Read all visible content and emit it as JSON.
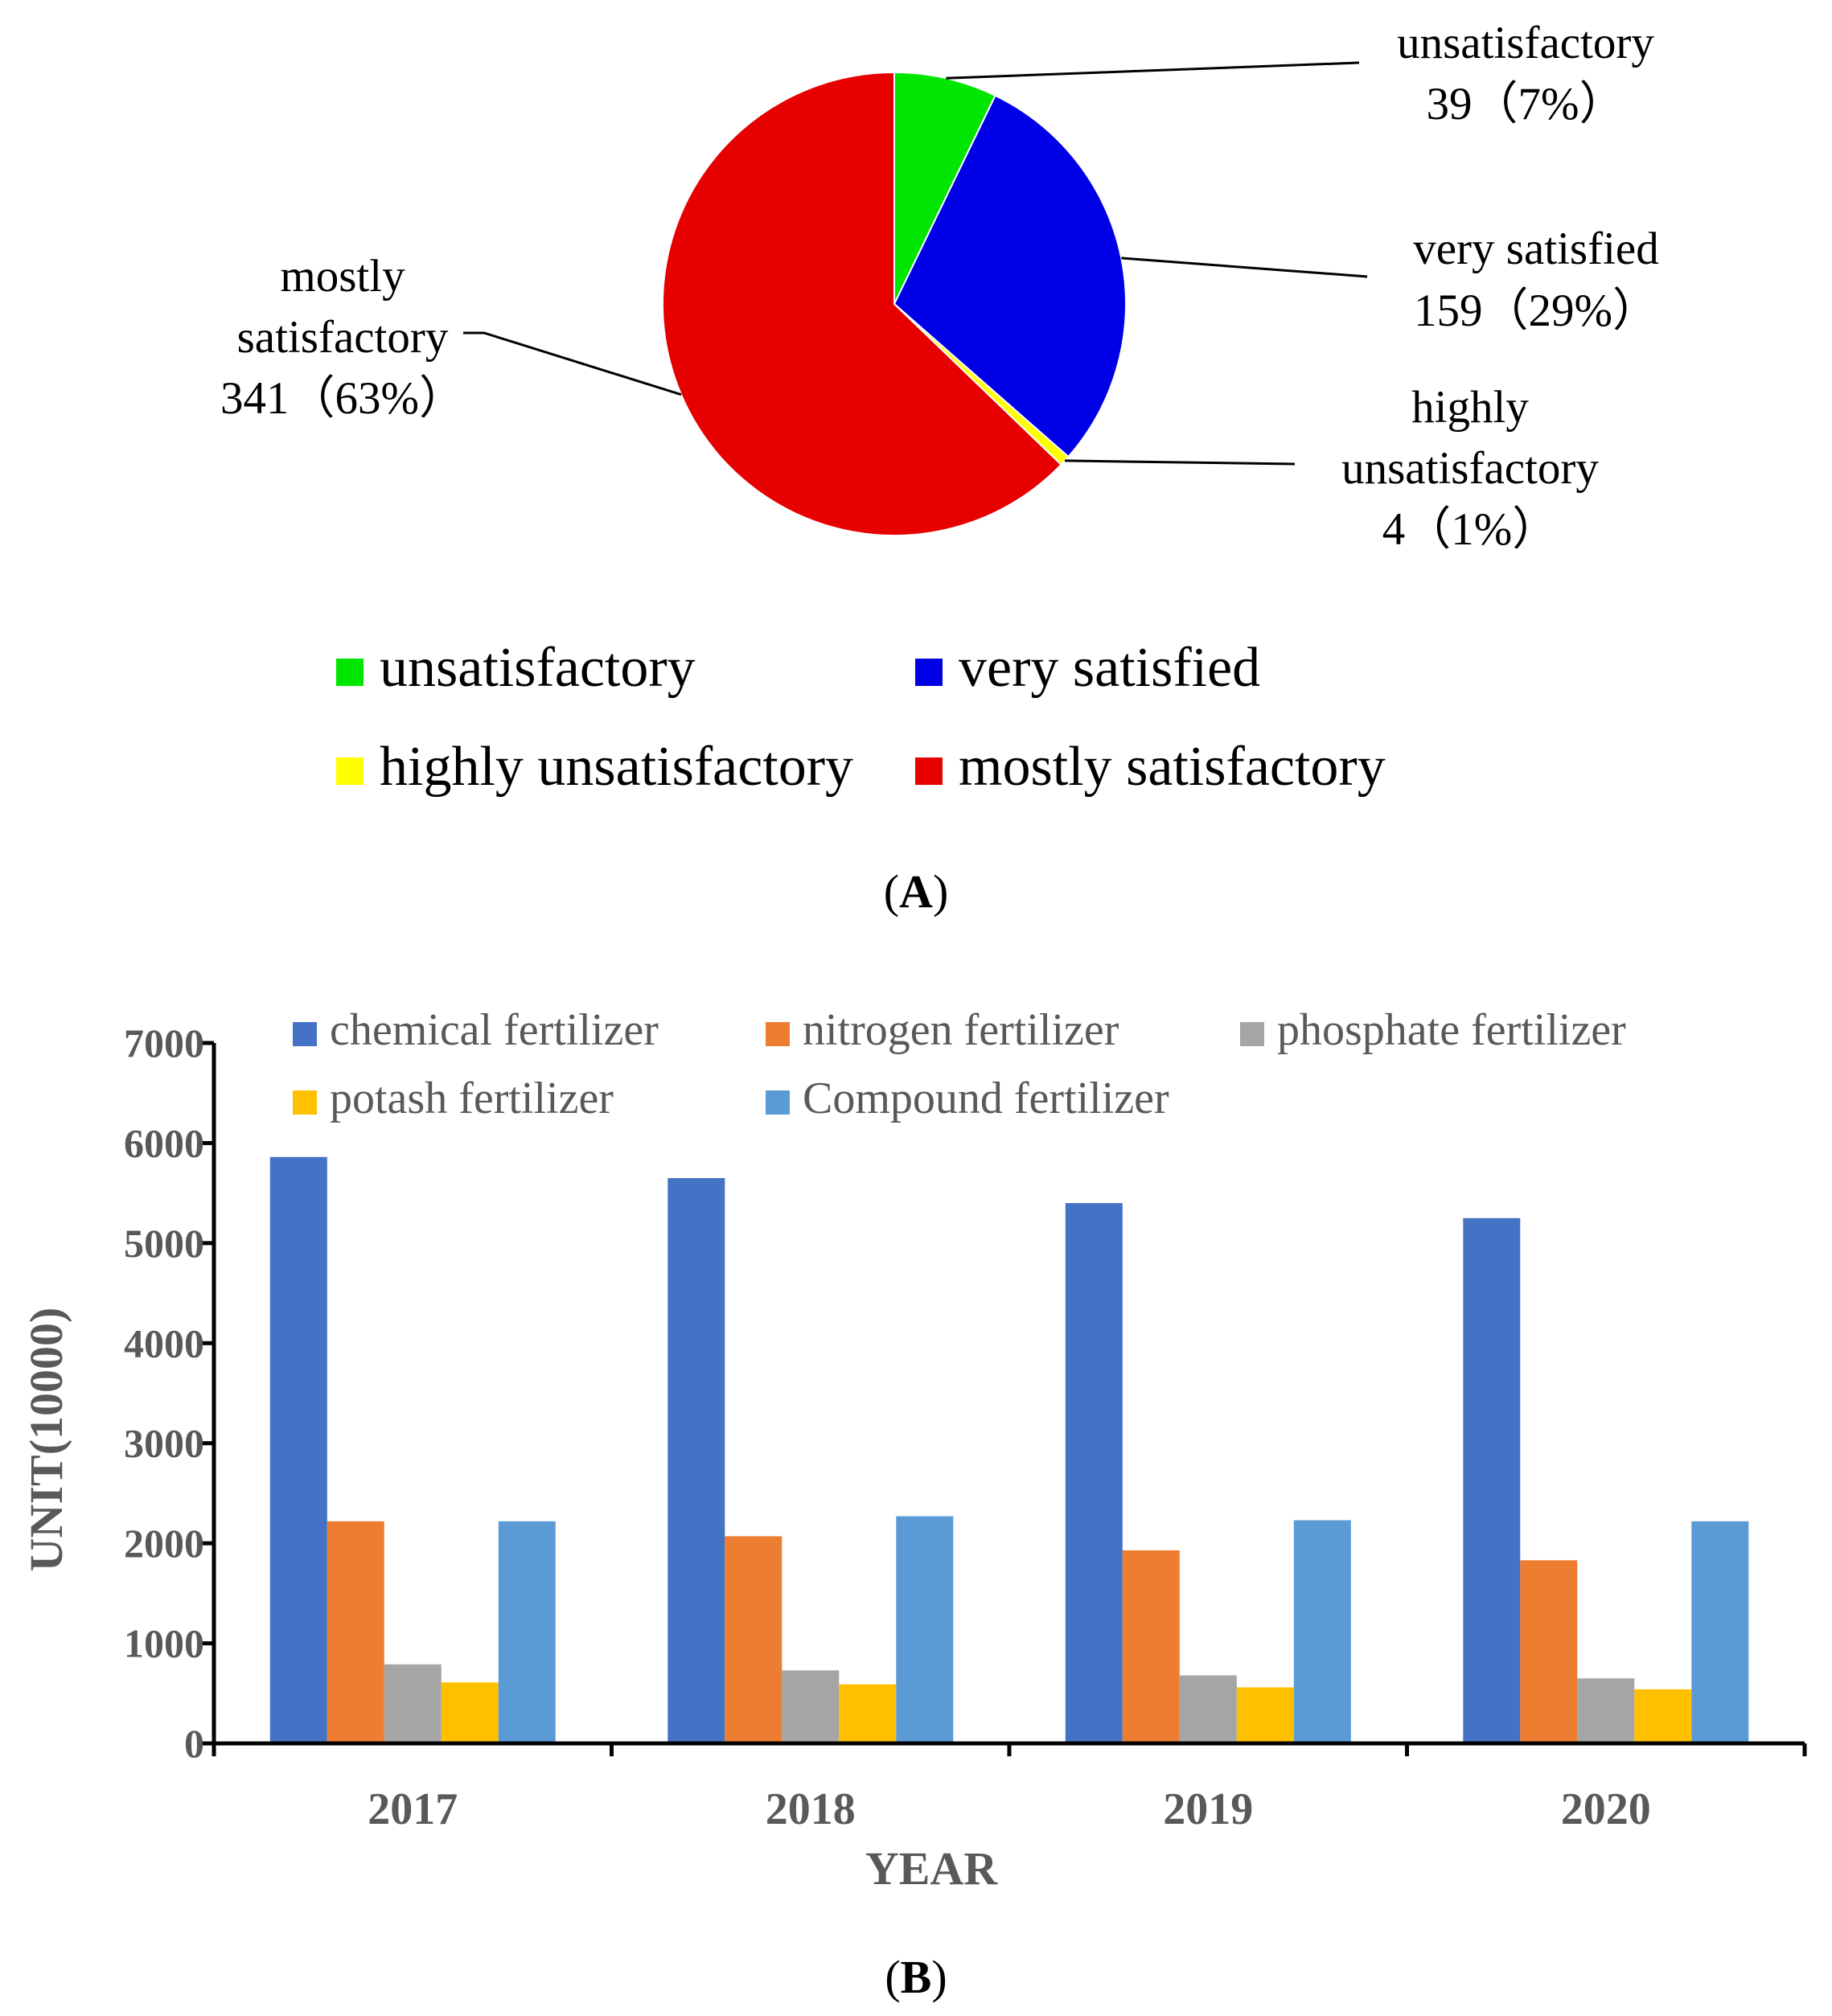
{
  "panel_a": {
    "panel_label": "A"
  },
  "panel_b": {
    "panel_label": "B"
  },
  "chart_data": [
    {
      "type": "pie",
      "slices": [
        {
          "name": "unsatisfactory",
          "value": 39,
          "percent": "7%",
          "color": "#00e600",
          "label_lines": [
            "unsatisfactory",
            "39（7%）"
          ]
        },
        {
          "name": "very satisfied",
          "value": 159,
          "percent": "29%",
          "color": "#0000e6",
          "label_lines": [
            "very satisfied",
            "159（29%）"
          ]
        },
        {
          "name": "highly unsatisfactory",
          "value": 4,
          "percent": "1%",
          "color": "#ffff00",
          "label_lines": [
            "highly",
            "unsatisfactory",
            "4（1%）"
          ]
        },
        {
          "name": "mostly satisfactory",
          "value": 341,
          "percent": "63%",
          "color": "#e60000",
          "label_lines": [
            "mostly",
            "satisfactory",
            "341（63%）"
          ]
        }
      ],
      "legend": [
        "unsatisfactory",
        "very satisfied",
        "highly unsatisfactory",
        "mostly satisfactory"
      ],
      "legend_position": "bottom"
    },
    {
      "type": "bar",
      "categories": [
        "2017",
        "2018",
        "2019",
        "2020"
      ],
      "series": [
        {
          "name": "chemical fertilizer",
          "color": "#4472c4",
          "values": [
            5860,
            5650,
            5400,
            5250
          ]
        },
        {
          "name": "nitrogen fertilizer",
          "color": "#ed7d31",
          "values": [
            2220,
            2070,
            1930,
            1830
          ]
        },
        {
          "name": "phosphate fertilizer",
          "color": "#a5a5a5",
          "values": [
            790,
            730,
            680,
            650
          ]
        },
        {
          "name": "potash fertilizer",
          "color": "#ffc000",
          "values": [
            610,
            590,
            560,
            540
          ]
        },
        {
          "name": "Compound fertilizer",
          "color": "#5b9bd5",
          "values": [
            2220,
            2270,
            2230,
            2220
          ]
        }
      ],
      "xlabel": "YEAR",
      "ylabel": "UNIT(10000)",
      "ylim": [
        0,
        7000
      ],
      "yticks": [
        "0",
        "1000",
        "2000",
        "3000",
        "4000",
        "5000",
        "6000",
        "7000"
      ],
      "grid": false,
      "legend_position": "top"
    }
  ]
}
